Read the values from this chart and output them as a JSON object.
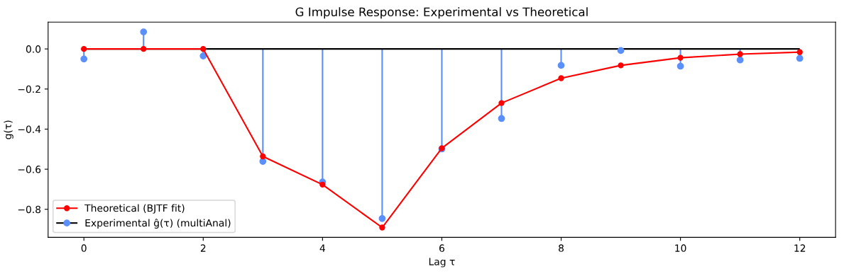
{
  "chart_data": {
    "type": "line",
    "title": "G Impulse Response: Experimental vs Theoretical",
    "xlabel": "Lag τ",
    "ylabel": "g(τ)",
    "x": [
      0,
      1,
      2,
      3,
      4,
      5,
      6,
      7,
      8,
      9,
      10,
      11,
      12
    ],
    "series": [
      {
        "name": "Theoretical (BJTF fit)",
        "color": "#ff0000",
        "marker": "circle",
        "values": [
          0,
          0,
          0,
          -0.536,
          -0.677,
          -0.891,
          -0.495,
          -0.27,
          -0.146,
          -0.082,
          -0.044,
          -0.026,
          -0.016
        ]
      },
      {
        "name": "Experimental ĝ(τ) (multiAnal)",
        "type": "lollipop",
        "color": "#5b8ff9",
        "marker": "circle",
        "values": [
          -0.05,
          0.085,
          -0.035,
          -0.561,
          -0.664,
          -0.846,
          -0.499,
          -0.347,
          -0.082,
          -0.008,
          -0.086,
          -0.055,
          -0.047
        ]
      }
    ],
    "xlim": [
      -0.6,
      12.6
    ],
    "xticks": [
      0,
      2,
      4,
      6,
      8,
      10,
      12
    ],
    "ylim": [
      -0.94,
      0.134
    ],
    "yticks": [
      {
        "value": -0.8,
        "label": "−0.8"
      },
      {
        "value": -0.6,
        "label": "−0.6"
      },
      {
        "value": -0.4,
        "label": "−0.4"
      },
      {
        "value": -0.2,
        "label": "−0.2"
      },
      {
        "value": 0,
        "label": "0.0"
      }
    ],
    "ref_lines": [
      {
        "axis": "y",
        "value": 0,
        "color": "#000000"
      }
    ],
    "legend": "bottom left"
  }
}
